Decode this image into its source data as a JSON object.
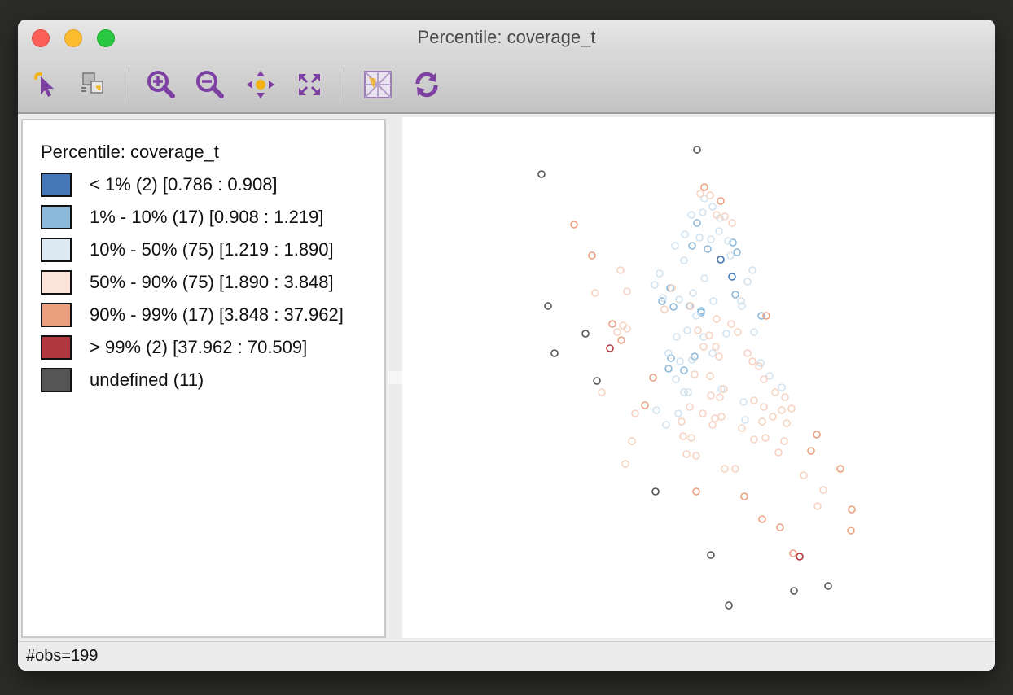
{
  "window": {
    "title": "Percentile: coverage_t"
  },
  "toolbar": {
    "buttons": [
      {
        "name": "select-tool-button",
        "icon": "pointer-icon"
      },
      {
        "name": "selection-mode-button",
        "icon": "selection-mode-icon"
      },
      {
        "name": "zoom-in-button",
        "icon": "zoom-in-icon"
      },
      {
        "name": "zoom-out-button",
        "icon": "zoom-out-icon"
      },
      {
        "name": "pan-button",
        "icon": "pan-icon"
      },
      {
        "name": "fit-to-window-button",
        "icon": "fit-window-icon"
      },
      {
        "name": "basemap-button",
        "icon": "basemap-icon"
      },
      {
        "name": "refresh-button",
        "icon": "refresh-icon"
      }
    ],
    "icon_color": "#7e3fa3"
  },
  "legend": {
    "title": "Percentile: coverage_t",
    "items": [
      {
        "label": "< 1% (2)  [0.786 : 0.908]",
        "color": "#4477b8"
      },
      {
        "label": "1% - 10% (17)  [0.908 : 1.219]",
        "color": "#8bb9da"
      },
      {
        "label": "10% - 50% (75)  [1.219 : 1.890]",
        "color": "#dde9f3"
      },
      {
        "label": "50% - 90% (75)  [1.890 : 3.848]",
        "color": "#fbe3d9"
      },
      {
        "label": "90% - 99% (17)  [3.848 : 37.962]",
        "color": "#eca07f"
      },
      {
        "label": "> 99% (2)  [37.962 : 70.509]",
        "color": "#b0383e"
      },
      {
        "label": "undefined (11)",
        "color": "#555555"
      }
    ]
  },
  "map": {
    "point_colors": [
      "#4477b8",
      "#8bb9da",
      "#d2e3f0",
      "#f6d3c2",
      "#eca07f",
      "#b0383e",
      "#555555"
    ]
  },
  "status": {
    "text": "#obs=199"
  }
}
